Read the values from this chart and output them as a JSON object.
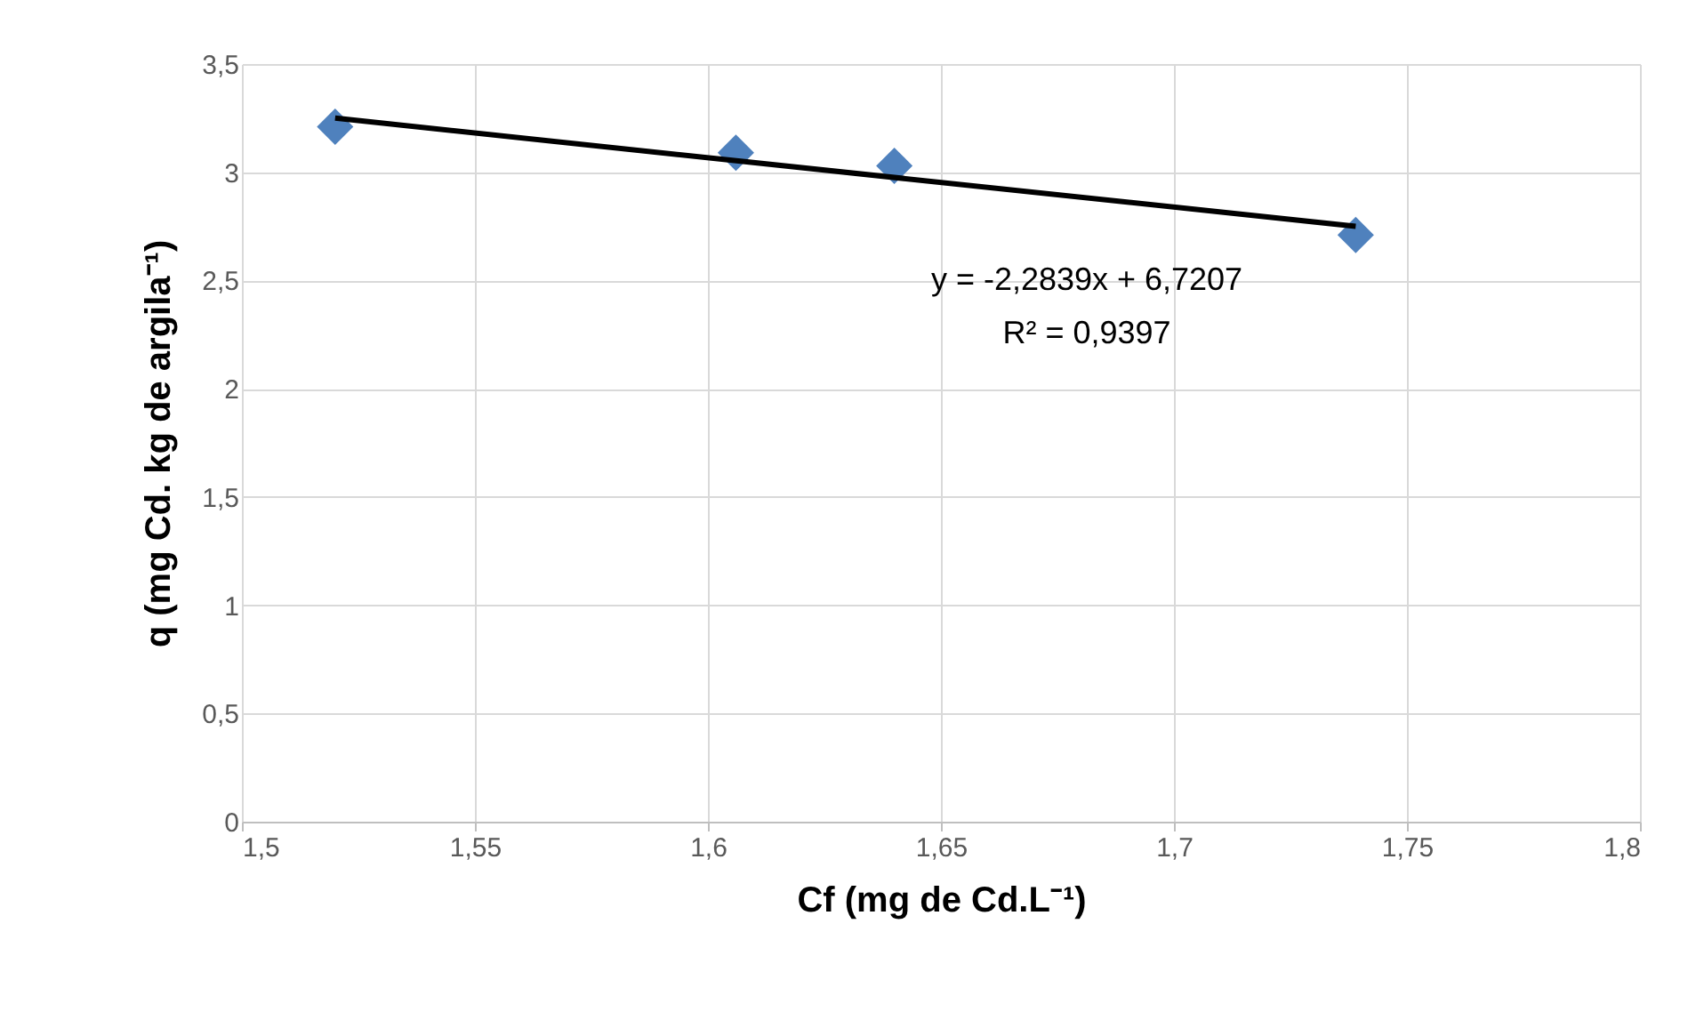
{
  "chart_data": {
    "type": "scatter",
    "xlabel": "Cf (mg de Cd.L⁻¹)",
    "ylabel": "q (mg Cd. kg de argila⁻¹)",
    "series": [
      {
        "type": "scatter",
        "color": "#4f81bd",
        "marker": "diamond",
        "x": [
          1.52,
          1.606,
          1.64,
          1.739
        ],
        "values": [
          3.21,
          3.09,
          3.03,
          2.71
        ]
      },
      {
        "type": "line",
        "color": "#000000",
        "line_style": "solid",
        "x": [
          1.52,
          1.739
        ],
        "values": [
          3.25,
          2.75
        ]
      }
    ],
    "xlim": [
      1.5,
      1.8
    ],
    "xticks": [
      {
        "value": 1.5,
        "label": "1,5"
      },
      {
        "value": 1.55,
        "label": "1,55"
      },
      {
        "value": 1.6,
        "label": "1,6"
      },
      {
        "value": 1.65,
        "label": "1,65"
      },
      {
        "value": 1.7,
        "label": "1,7"
      },
      {
        "value": 1.75,
        "label": "1,75"
      },
      {
        "value": 1.8,
        "label": "1,8"
      }
    ],
    "ylim": [
      0,
      3.5
    ],
    "yticks": [
      0,
      {
        "value": 0.5,
        "label": "0,5"
      },
      1,
      {
        "value": 1.5,
        "label": "1,5"
      },
      2,
      {
        "value": 2.5,
        "label": "2,5"
      },
      3,
      {
        "value": 3.5,
        "label": "3,5"
      }
    ],
    "annotations": [
      "y = -2,2839x + 6,7207",
      "R² = 0,9397"
    ],
    "grid": true
  }
}
